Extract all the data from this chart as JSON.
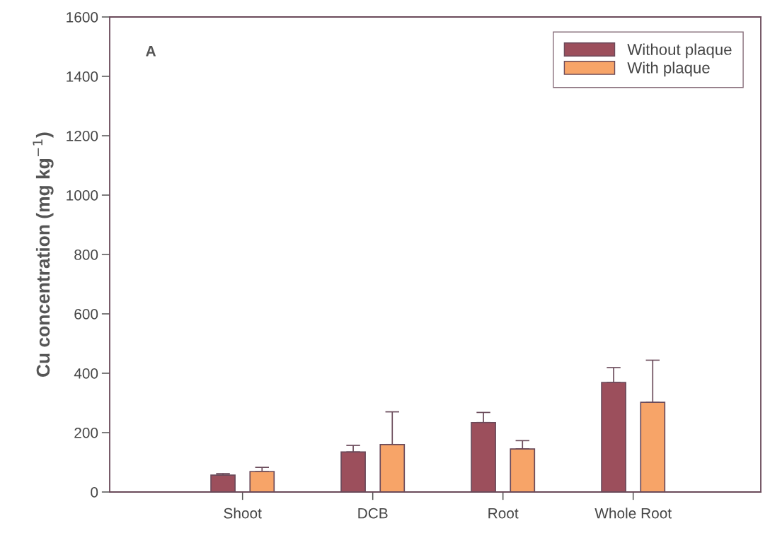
{
  "chart_data": {
    "type": "bar",
    "ylabel": "Cu concentration (mg kg$^{−1}$)",
    "categories": [
      "Shoot",
      "DCB",
      "Root",
      "Whole Root"
    ],
    "series": [
      {
        "name": "Without plaque",
        "color": "#9c4f5c",
        "values": [
          57,
          135,
          234,
          369
        ],
        "errors": [
          [
            57,
            62
          ],
          [
            135,
            157
          ],
          [
            234,
            268
          ],
          [
            369,
            419
          ]
        ]
      },
      {
        "name": "With plaque",
        "color": "#f7a468",
        "values": [
          69,
          160,
          145,
          302
        ],
        "errors": [
          [
            69,
            83
          ],
          [
            160,
            270
          ],
          [
            145,
            173
          ],
          [
            302,
            444
          ]
        ]
      }
    ],
    "ylim": [
      0,
      1600
    ],
    "yticks": [
      0,
      200,
      400,
      600,
      800,
      1000,
      1200,
      1400,
      1600
    ],
    "annotations": [
      "A"
    ],
    "legend": "top right",
    "grid": false
  }
}
